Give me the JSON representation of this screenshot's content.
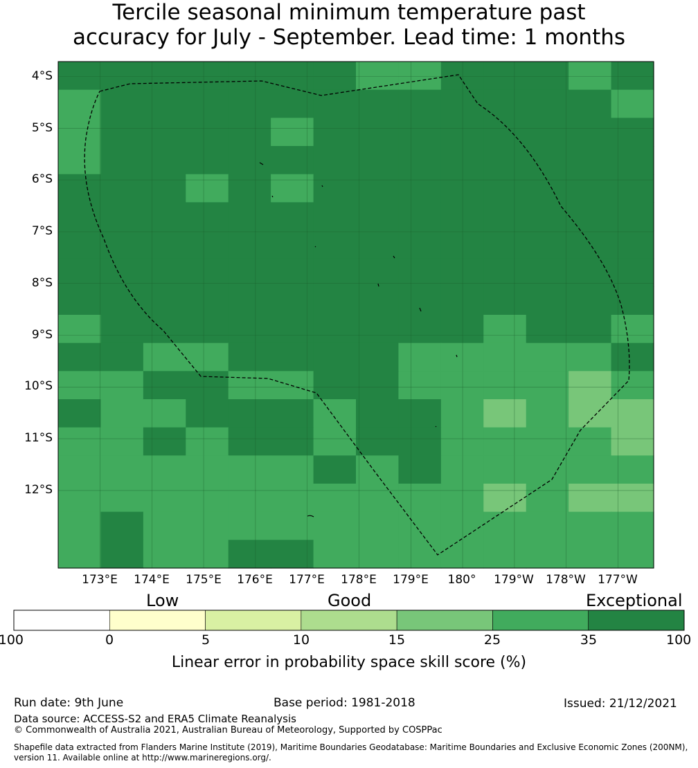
{
  "title": {
    "line1": "Tercile seasonal minimum temperature past",
    "line2": "accuracy for July - September. Lead time: 1 months"
  },
  "map": {
    "lat_labels": [
      "4°S",
      "5°S",
      "6°S",
      "7°S",
      "8°S",
      "9°S",
      "10°S",
      "11°S",
      "12°S"
    ],
    "lon_labels": [
      "173°E",
      "174°E",
      "175°E",
      "176°E",
      "177°E",
      "178°E",
      "179°E",
      "180°",
      "179°W",
      "178°W",
      "177°W"
    ],
    "class_colors": [
      "#ffffff",
      "#ffffcc",
      "#d9f0a3",
      "#addd8e",
      "#78c679",
      "#41ab5d",
      "#238443"
    ],
    "grid": [
      [
        6,
        6,
        6,
        6,
        6,
        6,
        6,
        5,
        5,
        6,
        6,
        6,
        5,
        6
      ],
      [
        5,
        6,
        6,
        6,
        6,
        6,
        6,
        6,
        6,
        6,
        6,
        6,
        6,
        5
      ],
      [
        5,
        6,
        6,
        6,
        6,
        5,
        6,
        6,
        6,
        6,
        6,
        6,
        6,
        6
      ],
      [
        5,
        6,
        6,
        6,
        6,
        6,
        6,
        6,
        6,
        6,
        6,
        6,
        6,
        6
      ],
      [
        6,
        6,
        6,
        5,
        6,
        5,
        6,
        6,
        6,
        6,
        6,
        6,
        6,
        6
      ],
      [
        6,
        6,
        6,
        6,
        6,
        6,
        6,
        6,
        6,
        6,
        6,
        6,
        6,
        6
      ],
      [
        6,
        6,
        6,
        6,
        6,
        6,
        6,
        6,
        6,
        6,
        6,
        6,
        6,
        6
      ],
      [
        6,
        6,
        6,
        6,
        6,
        6,
        6,
        6,
        6,
        6,
        6,
        6,
        6,
        6
      ],
      [
        6,
        6,
        6,
        6,
        6,
        6,
        6,
        6,
        6,
        6,
        6,
        6,
        6,
        6
      ],
      [
        5,
        6,
        6,
        6,
        6,
        6,
        6,
        6,
        6,
        6,
        5,
        6,
        6,
        5
      ],
      [
        6,
        6,
        5,
        5,
        6,
        6,
        6,
        6,
        5,
        5,
        5,
        5,
        5,
        6
      ],
      [
        5,
        5,
        6,
        6,
        5,
        5,
        6,
        6,
        5,
        5,
        5,
        5,
        4,
        5
      ],
      [
        6,
        5,
        5,
        6,
        6,
        6,
        5,
        6,
        6,
        5,
        4,
        5,
        4,
        4
      ],
      [
        5,
        5,
        6,
        5,
        6,
        6,
        5,
        6,
        6,
        5,
        5,
        5,
        5,
        4
      ],
      [
        5,
        5,
        5,
        5,
        5,
        5,
        6,
        5,
        6,
        5,
        5,
        5,
        5,
        5
      ],
      [
        5,
        5,
        5,
        5,
        5,
        5,
        5,
        5,
        5,
        5,
        4,
        5,
        4,
        4
      ],
      [
        5,
        6,
        5,
        5,
        5,
        5,
        5,
        5,
        5,
        5,
        5,
        5,
        5,
        5
      ],
      [
        5,
        6,
        5,
        5,
        6,
        6,
        5,
        5,
        5,
        5,
        5,
        5,
        5,
        5
      ]
    ]
  },
  "colorbar": {
    "categories": [
      "Low",
      "Good",
      "Exceptional"
    ],
    "ticks": [
      "-100",
      "0",
      "5",
      "10",
      "15",
      "25",
      "35",
      "100"
    ],
    "colors": [
      "#ffffff",
      "#ffffcc",
      "#d9f0a3",
      "#addd8e",
      "#78c679",
      "#41ab5d",
      "#238443"
    ],
    "label": "Linear error in probability space skill score (%)"
  },
  "footer": {
    "run_date": "Run date: 9th June",
    "base_period": "Base period: 1981-2018",
    "issued": "Issued: 21/12/2021",
    "data_source": "Data source: ACCESS-S2 and ERA5 Climate Reanalysis",
    "copyright": "© Commonwealth of Australia 2021, Australian Bureau of Meteorology, Supported by COSPPac",
    "shapefile_1": "Shapefile data extracted from Flanders Marine Institute (2019), Maritime Boundaries Geodatabase: Maritime Boundaries and Exclusive Economic Zones (200NM),",
    "shapefile_2": "version 11. Available online at http://www.marineregions.org/."
  }
}
